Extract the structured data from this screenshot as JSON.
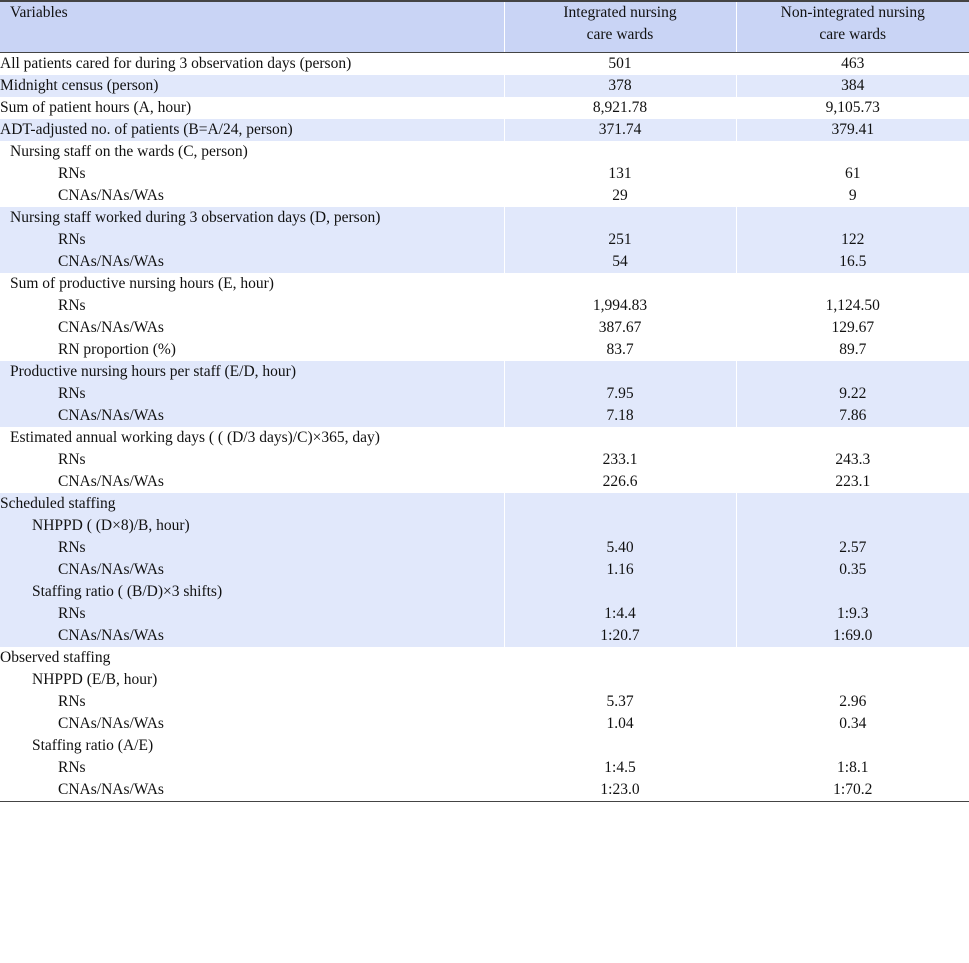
{
  "headers": {
    "variables": "Variables",
    "integrated_line1": "Integrated nursing",
    "integrated_line2": "care wards",
    "nonintegrated_line1": "Non-integrated nursing",
    "nonintegrated_line2": "care wards"
  },
  "rows": {
    "all_patients": {
      "label": "All patients cared for during 3 observation days (person)",
      "integrated": "501",
      "nonintegrated": "463"
    },
    "midnight_census": {
      "label": "Midnight census (person)",
      "integrated": "378",
      "nonintegrated": "384"
    },
    "patient_hours": {
      "label": "Sum of patient hours (A, hour)",
      "integrated": "8,921.78",
      "nonintegrated": "9,105.73"
    },
    "adt_adjusted": {
      "label": "ADT-adjusted no. of patients (B=A/24, person)",
      "integrated": "371.74",
      "nonintegrated": "379.41"
    },
    "staff_on_wards": {
      "label": "Nursing staff on the wards (C, person)",
      "rns": {
        "label": "RNs",
        "integrated": "131",
        "nonintegrated": "61"
      },
      "cnas": {
        "label": "CNAs/NAs/WAs",
        "integrated": "29",
        "nonintegrated": "9"
      }
    },
    "staff_worked": {
      "label": "Nursing staff worked during 3 observation days (D, person)",
      "rns": {
        "label": "RNs",
        "integrated": "251",
        "nonintegrated": "122"
      },
      "cnas": {
        "label": "CNAs/NAs/WAs",
        "integrated": "54",
        "nonintegrated": "16.5"
      }
    },
    "productive_hours": {
      "label": "Sum of productive nursing hours (E, hour)",
      "rns": {
        "label": "RNs",
        "integrated": "1,994.83",
        "nonintegrated": "1,124.50"
      },
      "cnas": {
        "label": "CNAs/NAs/WAs",
        "integrated": "387.67",
        "nonintegrated": "129.67"
      },
      "rn_prop": {
        "label": "RN proportion (%)",
        "integrated": "83.7",
        "nonintegrated": "89.7"
      }
    },
    "hours_per_staff": {
      "label": "Productive nursing hours per staff (E/D, hour)",
      "rns": {
        "label": "RNs",
        "integrated": "7.95",
        "nonintegrated": "9.22"
      },
      "cnas": {
        "label": "CNAs/NAs/WAs",
        "integrated": "7.18",
        "nonintegrated": "7.86"
      }
    },
    "annual_days": {
      "label": "Estimated annual working days ( ( (D/3 days)/C)×365, day)",
      "rns": {
        "label": "RNs",
        "integrated": "233.1",
        "nonintegrated": "243.3"
      },
      "cnas": {
        "label": "CNAs/NAs/WAs",
        "integrated": "226.6",
        "nonintegrated": "223.1"
      }
    },
    "scheduled": {
      "label": "Scheduled staffing",
      "nhppd": {
        "label": "NHPPD ( (D×8)/B, hour)",
        "rns": {
          "label": "RNs",
          "integrated": "5.40",
          "nonintegrated": "2.57"
        },
        "cnas": {
          "label": "CNAs/NAs/WAs",
          "integrated": "1.16",
          "nonintegrated": "0.35"
        }
      },
      "ratio": {
        "label": "Staffing ratio ( (B/D)×3 shifts)",
        "rns": {
          "label": "RNs",
          "integrated": "1:4.4",
          "nonintegrated": "1:9.3"
        },
        "cnas": {
          "label": "CNAs/NAs/WAs",
          "integrated": "1:20.7",
          "nonintegrated": "1:69.0"
        }
      }
    },
    "observed": {
      "label": "Observed staffing",
      "nhppd": {
        "label": "NHPPD (E/B, hour)",
        "rns": {
          "label": "RNs",
          "integrated": "5.37",
          "nonintegrated": "2.96"
        },
        "cnas": {
          "label": "CNAs/NAs/WAs",
          "integrated": "1.04",
          "nonintegrated": "0.34"
        }
      },
      "ratio": {
        "label": "Staffing ratio (A/E)",
        "rns": {
          "label": "RNs",
          "integrated": "1:4.5",
          "nonintegrated": "1:8.1"
        },
        "cnas": {
          "label": "CNAs/NAs/WAs",
          "integrated": "1:23.0",
          "nonintegrated": "1:70.2"
        }
      }
    }
  }
}
